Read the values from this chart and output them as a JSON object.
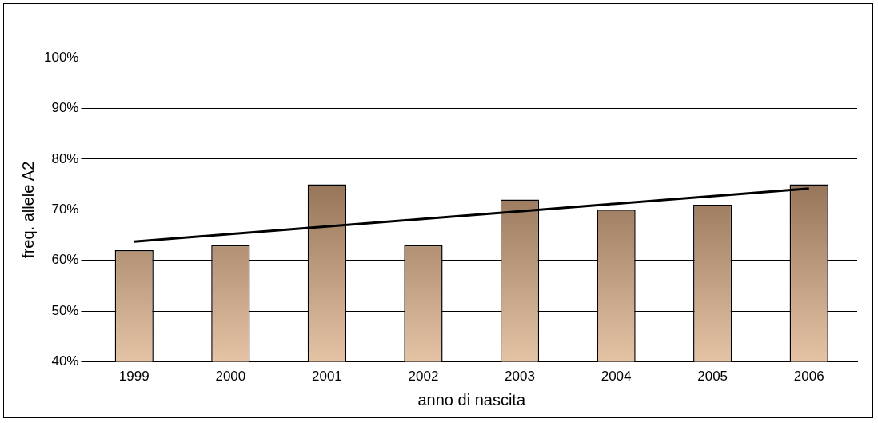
{
  "chart_data": {
    "type": "bar",
    "xlabel": "anno di nascita",
    "ylabel": "freq. allele A2",
    "categories": [
      "1999",
      "2000",
      "2001",
      "2002",
      "2003",
      "2004",
      "2005",
      "2006"
    ],
    "series": [
      {
        "color": "#8b6a4f",
        "values": [
          62,
          63,
          75,
          63,
          72,
          70,
          71,
          75
        ]
      },
      {
        "type": "line",
        "color": "#000000",
        "values": [
          63.7,
          65.2,
          66.7,
          68.2,
          69.7,
          71.2,
          72.7,
          74.2
        ]
      }
    ],
    "ylim": [
      40,
      100
    ],
    "yticks": [
      {
        "value": 40,
        "label": "40%"
      },
      {
        "value": 50,
        "label": "50%"
      },
      {
        "value": 60,
        "label": "60%"
      },
      {
        "value": 70,
        "label": "70%"
      },
      {
        "value": 80,
        "label": "80%"
      },
      {
        "value": 90,
        "label": "90%"
      },
      {
        "value": 100,
        "label": "100%"
      }
    ],
    "grid": "y",
    "legend": false,
    "marker": "none",
    "line_style": "solid"
  }
}
